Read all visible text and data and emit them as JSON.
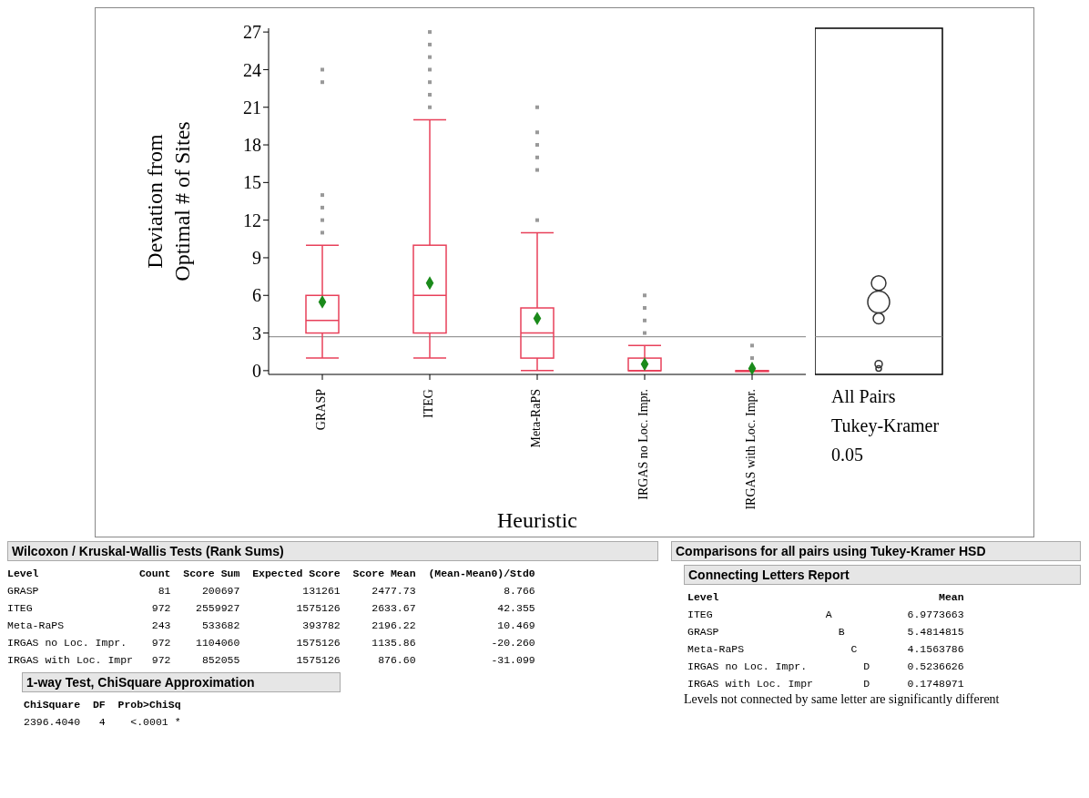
{
  "chart_data": {
    "type": "box",
    "xlabel": "Heuristic",
    "ylabel": "Deviation from Optimal # of Sites",
    "categories": [
      "GRASP",
      "ITEG",
      "Meta-RaPS",
      "IRGAS no Loc. Impr.",
      "IRGAS with Loc. Impr."
    ],
    "boxes": [
      {
        "low": 1,
        "q1": 3,
        "median": 4,
        "q3": 6,
        "high": 10,
        "outliers": [
          11,
          12,
          13,
          14,
          23,
          24
        ]
      },
      {
        "low": 1,
        "q1": 3,
        "median": 6,
        "q3": 10,
        "high": 20,
        "outliers": [
          21,
          22,
          23,
          24,
          25,
          26,
          27
        ]
      },
      {
        "low": 0,
        "q1": 1,
        "median": 3,
        "q3": 5,
        "high": 11,
        "outliers": [
          12,
          16,
          17,
          18,
          19,
          21
        ]
      },
      {
        "low": 0,
        "q1": 0,
        "median": 0,
        "q3": 1,
        "high": 2,
        "outliers": [
          3,
          4,
          5,
          6
        ]
      },
      {
        "low": 0,
        "q1": 0,
        "median": 0,
        "q3": 0,
        "high": 0,
        "outliers": [
          1,
          2
        ]
      }
    ],
    "series": [
      {
        "type": "scatter",
        "x": [
          "GRASP",
          "ITEG",
          "Meta-RaPS",
          "IRGAS no Loc. Impr.",
          "IRGAS with Loc. Impr."
        ],
        "values": [
          5.48,
          6.98,
          4.16,
          0.52,
          0.17
        ],
        "color": "#1a8a1a",
        "marker": "diamond"
      }
    ],
    "color": "#e8405a",
    "ylim": [
      -0.3,
      27.3
    ],
    "yticks": [
      0,
      3,
      6,
      9,
      12,
      15,
      18,
      21,
      24,
      27
    ],
    "grid": false,
    "legend": false,
    "ref_lines": [
      {
        "axis": "y",
        "value": 2.7,
        "color": "#808080"
      }
    ],
    "annotations": [
      "All Pairs",
      "Tukey-Kramer",
      "0.05",
      "Wilcoxon / Kruskal-Wallis Tests (Rank Sums)",
      "Level                Count  Score Sum  Expected Score  Score Mean  (Mean-Mean0)/Std0",
      "GRASP                   81     200697          131261     2477.73              8.766",
      "ITEG                   972    2559927         1575126     2633.67             42.355",
      "Meta-RaPS              243     533682          393782     2196.22             10.469",
      "IRGAS no Loc. Impr.    972    1104060         1575126     1135.86            -20.260",
      "IRGAS with Loc. Impr   972     852055         1575126      876.60            -31.099",
      "1-way Test, ChiSquare Approximation",
      "ChiSquare  DF  Prob>ChiSq",
      "2396.4040   4    <.0001 *",
      "Comparisons for all pairs using Tukey-Kramer HSD",
      "Connecting Letters Report",
      "Level                                   Mean",
      "ITEG                  A            6.9773663",
      "GRASP                   B          5.4814815",
      "Meta-RaPS                 C        4.1563786",
      "IRGAS no Loc. Impr.         D      0.5236626",
      "IRGAS with Loc. Impr        D      0.1748971",
      "Levels not connected by same letter are significantly different"
    ]
  }
}
